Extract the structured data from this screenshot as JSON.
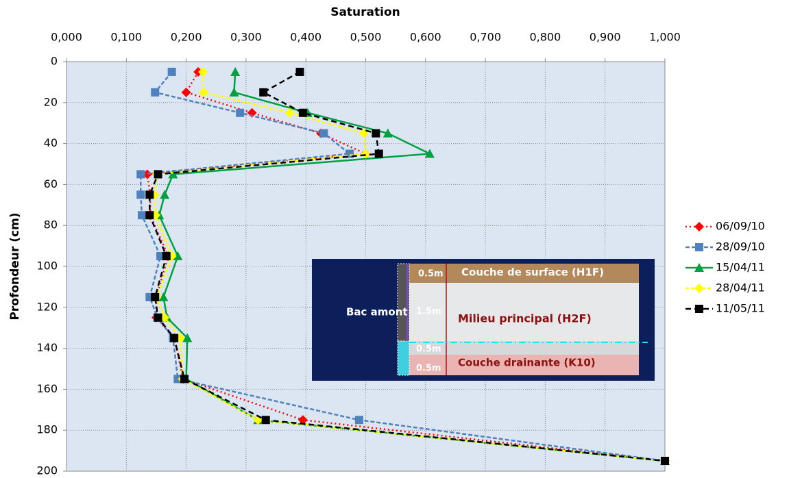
{
  "chart_data": {
    "type": "line",
    "title": "Saturation",
    "y_label": "Profondeur (cm)",
    "y": [
      5,
      15,
      25,
      35,
      45,
      55,
      65,
      75,
      95,
      115,
      125,
      135,
      155,
      175,
      195
    ],
    "series": [
      {
        "name": "06/09/10",
        "color": "#ff0000",
        "marker": "diamond",
        "dash": "2 4",
        "values": [
          0.22,
          0.2,
          0.31,
          0.425,
          0.5,
          0.135,
          0.14,
          0.14,
          0.17,
          0.15,
          0.15,
          0.18,
          0.195,
          0.395,
          1.0
        ]
      },
      {
        "name": "28/09/10",
        "color": "#4f81bd",
        "marker": "square",
        "dash": "6 3",
        "values": [
          0.176,
          0.148,
          0.29,
          0.43,
          0.473,
          0.124,
          0.124,
          0.126,
          0.157,
          0.139,
          0.152,
          0.178,
          0.186,
          0.489,
          1.0
        ]
      },
      {
        "name": "15/04/11",
        "color": "#00a040",
        "marker": "triangle",
        "dash": "",
        "values": [
          0.282,
          0.28,
          0.403,
          0.537,
          0.607,
          0.178,
          0.164,
          0.155,
          0.186,
          0.162,
          0.168,
          0.202,
          0.2,
          0.32,
          1.0
        ]
      },
      {
        "name": "28/04/11",
        "color": "#ffff00",
        "marker": "diamond",
        "dash": "5 3",
        "values": [
          0.228,
          0.229,
          0.373,
          0.497,
          0.5,
          0.151,
          0.147,
          0.149,
          0.176,
          0.151,
          0.164,
          0.19,
          0.194,
          0.32,
          1.0
        ]
      },
      {
        "name": "11/05/11",
        "color": "#000000",
        "marker": "square",
        "dash": "8 5",
        "values": [
          0.39,
          0.329,
          0.395,
          0.517,
          0.522,
          0.153,
          0.139,
          0.139,
          0.167,
          0.148,
          0.153,
          0.18,
          0.197,
          0.333,
          1.0
        ]
      }
    ],
    "xlim": [
      0,
      1
    ],
    "xticks": [
      {
        "value": 0,
        "label": "0,000"
      },
      {
        "value": 0.1,
        "label": "0,100"
      },
      {
        "value": 0.2,
        "label": "0,200"
      },
      {
        "value": 0.3,
        "label": "0,300"
      },
      {
        "value": 0.4,
        "label": "0,400"
      },
      {
        "value": 0.5,
        "label": "0,500"
      },
      {
        "value": 0.6,
        "label": "0,600"
      },
      {
        "value": 0.7,
        "label": "0,700"
      },
      {
        "value": 0.8,
        "label": "0,800"
      },
      {
        "value": 0.9,
        "label": "0,900"
      },
      {
        "value": 1,
        "label": "1,000"
      }
    ],
    "ylim": [
      0,
      200
    ],
    "yticks": [
      0,
      20,
      40,
      60,
      80,
      100,
      120,
      140,
      160,
      180,
      200
    ],
    "grid": true,
    "legend": "right",
    "annotations": [
      "Bac amont",
      "0.5m",
      "Couche de surface (H1F)",
      "1.5m",
      "Milieu principal (H2F)",
      "0.5m",
      "0.5m",
      "Couche drainante (K10)"
    ]
  }
}
